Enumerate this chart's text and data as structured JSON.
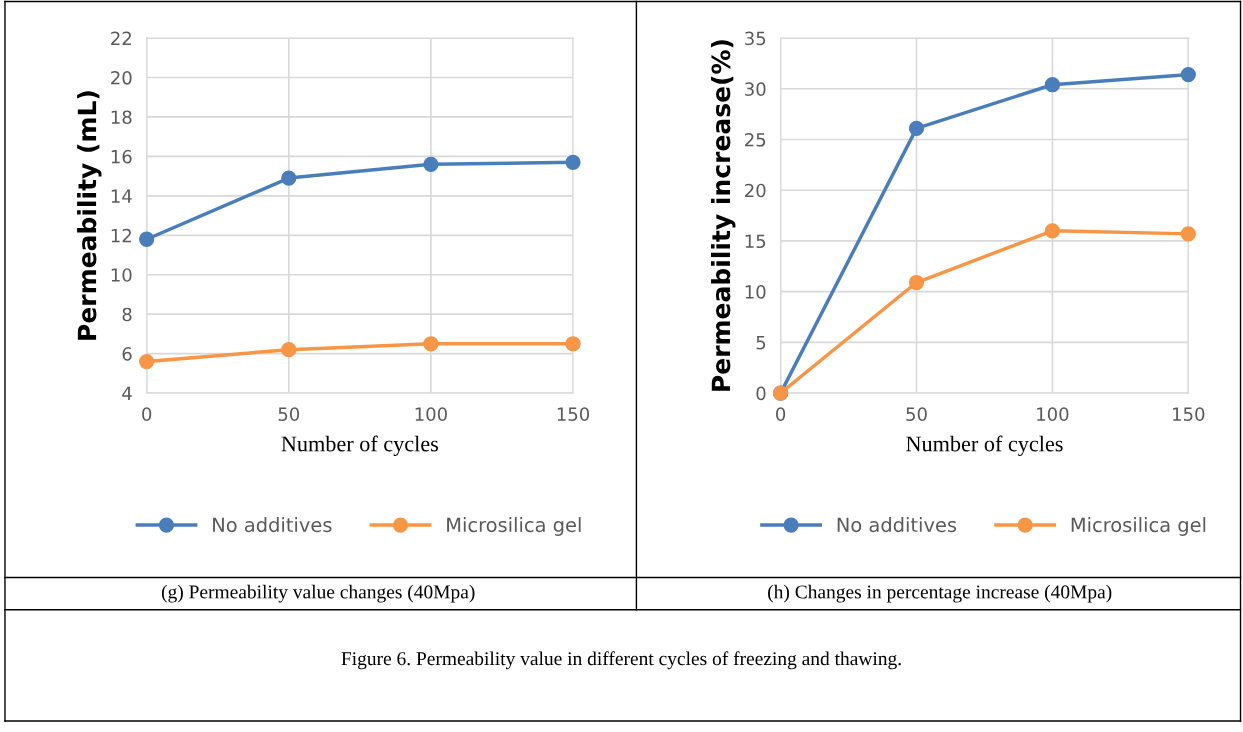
{
  "chart_data": [
    {
      "type": "line",
      "xlabel": "Number of cycles",
      "ylabel": "Permeability (mL)",
      "x": [
        0,
        50,
        100,
        150
      ],
      "xlim": [
        0,
        150
      ],
      "xticks": [
        0,
        50,
        100,
        150
      ],
      "ylim": [
        4,
        22
      ],
      "yticks": [
        4,
        6,
        8,
        10,
        12,
        14,
        16,
        18,
        20,
        22
      ],
      "grid": true,
      "legend": "bottom",
      "marker": "circle",
      "line_style": "solid",
      "series": [
        {
          "name": "No additives",
          "color": "#4a7ebb",
          "values": [
            11.8,
            14.9,
            15.6,
            15.7
          ]
        },
        {
          "name": "Microsilica gel",
          "color": "#f79646",
          "values": [
            5.6,
            6.2,
            6.5,
            6.5
          ]
        }
      ],
      "annotations": [
        "(g) Permeability value changes (40Mpa)"
      ]
    },
    {
      "type": "line",
      "xlabel": "Number of cycles",
      "ylabel": "Permeability increase(%)",
      "x": [
        0,
        50,
        100,
        150
      ],
      "xlim": [
        0,
        150
      ],
      "xticks": [
        0,
        50,
        100,
        150
      ],
      "ylim": [
        0,
        35
      ],
      "yticks": [
        0,
        5,
        10,
        15,
        20,
        25,
        30,
        35
      ],
      "grid": true,
      "legend": "bottom",
      "marker": "circle",
      "line_style": "solid",
      "series": [
        {
          "name": "No additives",
          "color": "#4a7ebb",
          "values": [
            0,
            26.1,
            30.4,
            31.4
          ]
        },
        {
          "name": "Microsilica gel",
          "color": "#f79646",
          "values": [
            0,
            10.9,
            16.0,
            15.7
          ]
        }
      ],
      "annotations": [
        "(h) Changes in percentage increase (40Mpa)",
        "Figure 6. Permeability value in different cycles of freezing and thawing."
      ]
    }
  ]
}
